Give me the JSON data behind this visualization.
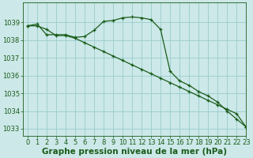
{
  "title": "Graphe pression niveau de la mer (hPa)",
  "background_color": "#cce8e8",
  "grid_color": "#99cccc",
  "line_color": "#1a5c1a",
  "xlim": [
    -0.5,
    23
  ],
  "ylim": [
    1032.6,
    1040.1
  ],
  "yticks": [
    1033,
    1034,
    1035,
    1036,
    1037,
    1038,
    1039
  ],
  "xticks": [
    0,
    1,
    2,
    3,
    4,
    5,
    6,
    7,
    8,
    9,
    10,
    11,
    12,
    13,
    14,
    15,
    16,
    17,
    18,
    19,
    20,
    21,
    22,
    23
  ],
  "series1_x": [
    0,
    1,
    2,
    3,
    4,
    5,
    6,
    7,
    8,
    9,
    10,
    11,
    12,
    13,
    14,
    15,
    16,
    17,
    18,
    19,
    20,
    21,
    22,
    23
  ],
  "series1_y": [
    1038.8,
    1038.9,
    1038.3,
    1038.3,
    1038.3,
    1038.15,
    1038.2,
    1038.55,
    1039.05,
    1039.1,
    1039.25,
    1039.3,
    1039.25,
    1039.15,
    1038.6,
    1036.25,
    1035.7,
    1035.45,
    1035.1,
    1034.85,
    1034.5,
    1034.0,
    1033.55,
    1033.1
  ],
  "series2_x": [
    0,
    1,
    2,
    3,
    4,
    5,
    6,
    7,
    8,
    9,
    10,
    11,
    12,
    13,
    14,
    15,
    16,
    17,
    18,
    19,
    20,
    21,
    22,
    23
  ],
  "series2_y": [
    1038.8,
    1038.8,
    1038.6,
    1038.25,
    1038.25,
    1038.1,
    1037.85,
    1037.6,
    1037.35,
    1037.1,
    1036.85,
    1036.6,
    1036.35,
    1036.1,
    1035.85,
    1035.6,
    1035.35,
    1035.1,
    1034.85,
    1034.6,
    1034.35,
    1034.1,
    1033.85,
    1033.1
  ],
  "title_fontsize": 7.5,
  "tick_fontsize": 6,
  "label_color": "#1a5c1a"
}
